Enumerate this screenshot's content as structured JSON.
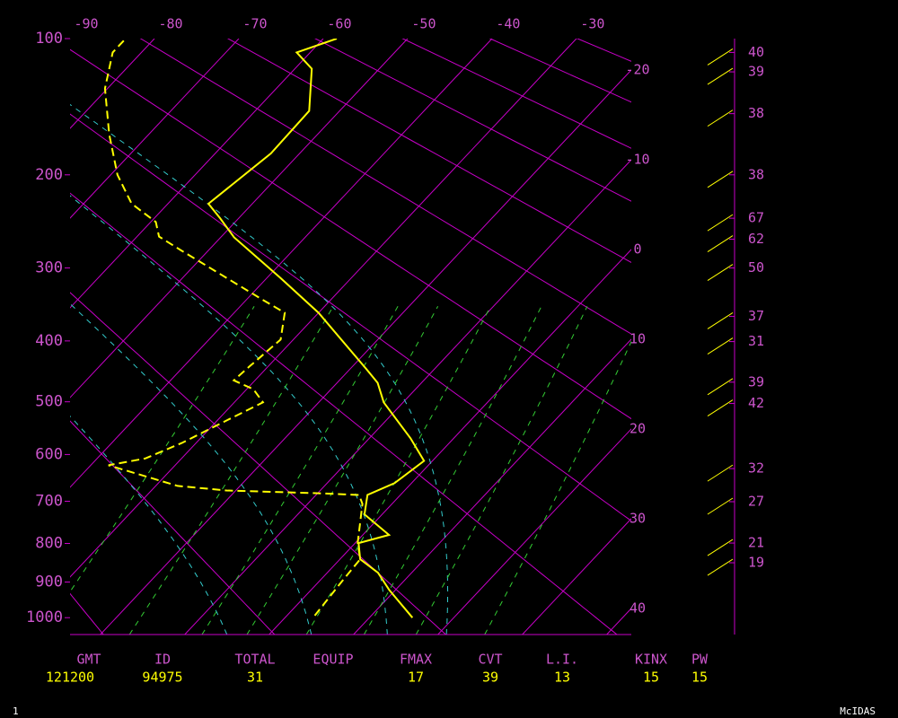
{
  "chart_data": {
    "type": "skewt",
    "ylim": [
      100,
      1050
    ],
    "yticks": [
      100,
      200,
      300,
      400,
      500,
      600,
      700,
      800,
      900,
      1000
    ],
    "xlim": [
      -90,
      -23.5
    ],
    "xticks": [
      -90,
      -80,
      -70,
      -60,
      -50,
      -40,
      -30
    ],
    "isotherm_labels": [
      -20,
      -10,
      0,
      10,
      20,
      30,
      40
    ],
    "line_color": "#c800c8",
    "label_color": "#cc55cc",
    "series": [
      {
        "color": "#ffff00",
        "dashed": false,
        "pressure": [
          1000,
          922,
          875,
          840,
          799,
          779,
          730,
          686,
          660,
          613,
          568,
          501,
          467,
          444,
          359,
          313,
          264,
          243,
          228,
          181,
          147,
          118,
          108,
          100
        ],
        "values": [
          15.1,
          9.3,
          6.0,
          2.4,
          0.4,
          3.1,
          -2.1,
          -3.9,
          -2.0,
          -1.0,
          -5.1,
          -12.3,
          -15.2,
          -18.1,
          -30.0,
          -38.3,
          -48.4,
          -52.2,
          -55.2,
          -53.4,
          -53.6,
          -58.0,
          -61.6,
          -58.4
        ]
      },
      {
        "color": "#ffff00",
        "dashed": true,
        "pressure": [
          994,
          898,
          840,
          799,
          706,
          686,
          682,
          676,
          666,
          622,
          608,
          577,
          534,
          501,
          478,
          463,
          440,
          398,
          359,
          341,
          279,
          263,
          247,
          228,
          200,
          165,
          131,
          108,
          100
        ],
        "values": [
          3.3,
          2.7,
          2.4,
          0.3,
          -3.5,
          -4.9,
          -10.2,
          -21.1,
          -27.4,
          -37.9,
          -34.3,
          -31.7,
          -28.9,
          -26.6,
          -29.2,
          -32.5,
          -32.2,
          -31.5,
          -34.0,
          -38.1,
          -53.2,
          -57.4,
          -59.4,
          -64.3,
          -69.2,
          -74.7,
          -80.3,
          -83.4,
          -83.4
        ]
      }
    ],
    "winds": {
      "color": "#ffff00",
      "pressure": [
        108,
        120,
        149,
        200,
        243,
        266,
        300,
        364,
        401,
        466,
        503,
        629,
        701,
        799,
        849
      ],
      "speeds": [
        40,
        39,
        38,
        38,
        67,
        62,
        50,
        37,
        31,
        39,
        42,
        32,
        27,
        21,
        19
      ]
    }
  },
  "stats": {
    "headers": [
      "GMT",
      "ID",
      "TOTAL",
      "EQUIP",
      "FMAX",
      "CVT",
      "L.I.",
      "KINX",
      "PW"
    ],
    "values": [
      121200,
      94975,
      31,
      null,
      17,
      39,
      13,
      15,
      15
    ]
  },
  "footer": {
    "page": "1",
    "brand": "McIDAS"
  }
}
